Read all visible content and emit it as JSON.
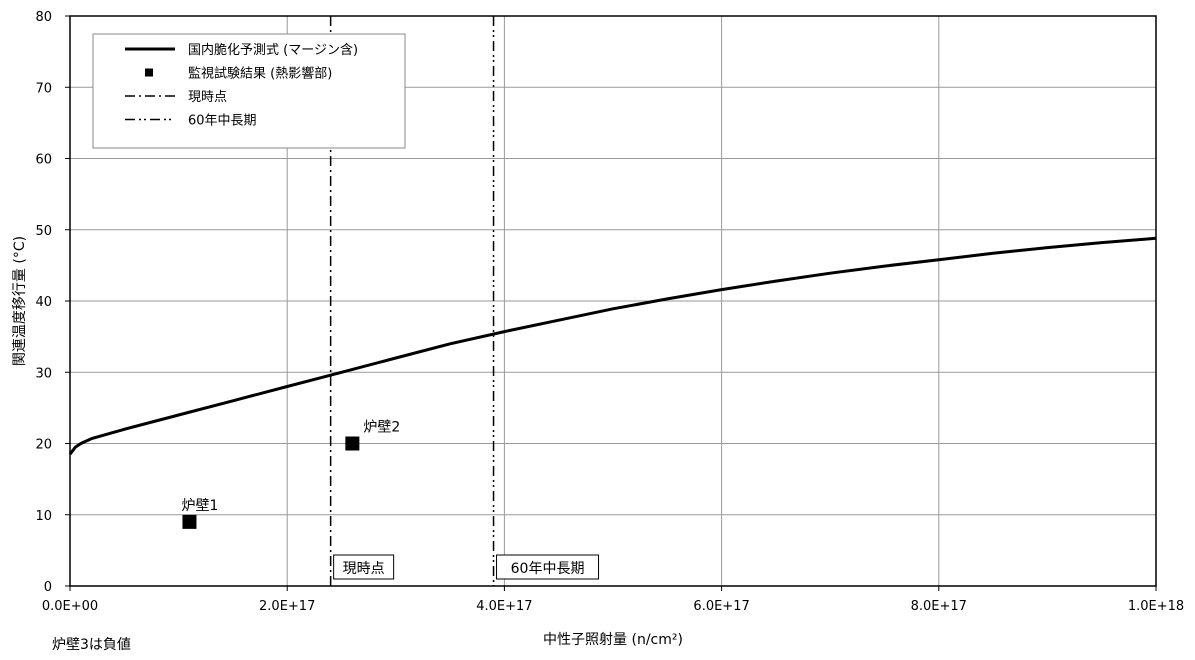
{
  "chart_data": {
    "type": "line",
    "xlabel": "中性子照射量 (n/cm²)",
    "ylabel": "関連温度移行量 (°C)",
    "xlim": [
      0,
      1e+18
    ],
    "ylim": [
      0,
      80
    ],
    "x_ticks": [
      0,
      2e+17,
      4e+17,
      6e+17,
      8e+17,
      1e+18
    ],
    "x_tick_labels": [
      "0.0E+00",
      "2.0E+17",
      "4.0E+17",
      "6.0E+17",
      "8.0E+17",
      "1.0E+18"
    ],
    "y_ticks": [
      0,
      10,
      20,
      30,
      40,
      50,
      60,
      70,
      80
    ],
    "y_tick_labels": [
      "0",
      "10",
      "20",
      "30",
      "40",
      "50",
      "60",
      "70",
      "80"
    ],
    "grid": true,
    "legend_position": "top-left",
    "series": [
      {
        "name": "国内脆化予測式 (マージン含)",
        "kind": "line",
        "x": [
          0,
          5000000000000000.0,
          1e+16,
          2e+16,
          5e+16,
          1e+17,
          1.5e+17,
          2e+17,
          2.5e+17,
          3e+17,
          3.5e+17,
          4e+17,
          4.5e+17,
          5e+17,
          5.5e+17,
          6e+17,
          6.5e+17,
          7e+17,
          7.5e+17,
          8e+17,
          8.5e+17,
          9e+17,
          9.5e+17,
          1e+18
        ],
        "values": [
          18.5,
          19.5,
          20.0,
          20.7,
          22.0,
          24.0,
          26.0,
          28.0,
          30.0,
          32.0,
          34.0,
          35.7,
          37.3,
          38.9,
          40.3,
          41.6,
          42.8,
          43.9,
          44.9,
          45.8,
          46.7,
          47.5,
          48.2,
          48.8
        ]
      },
      {
        "name": "監視試験結果 (熱影響部)",
        "kind": "scatter",
        "points": [
          {
            "x": 1.1e+17,
            "y": 9,
            "label": "炉壁1"
          },
          {
            "x": 2.6e+17,
            "y": 20,
            "label": "炉壁2"
          }
        ]
      },
      {
        "name": "現時点",
        "kind": "vline",
        "x": 2.4e+17,
        "label": "現時点"
      },
      {
        "name": "60年中長期",
        "kind": "vline",
        "x": 3.9e+17,
        "label": "60年中長期"
      }
    ]
  },
  "footnote": "炉壁3は負値"
}
